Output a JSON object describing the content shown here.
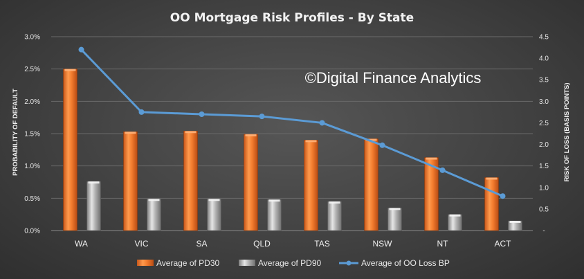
{
  "chart_data": {
    "type": "bar",
    "title": "OO Mortgage Risk Profiles - By State",
    "watermark": "©Digital Finance Analytics",
    "categories": [
      "WA",
      "VIC",
      "SA",
      "QLD",
      "TAS",
      "NSW",
      "NT",
      "ACT"
    ],
    "y_left": {
      "label": "PROBABILITY OF DEFAULT",
      "ticks": [
        "0.0%",
        "0.5%",
        "1.0%",
        "1.5%",
        "2.0%",
        "2.5%",
        "3.0%"
      ],
      "range": [
        0,
        3.0
      ]
    },
    "y_right": {
      "label": "RISK OF LOSS (BASIS POINTS)",
      "ticks": [
        "-",
        "0.5",
        "1.0",
        "1.5",
        "2.0",
        "2.5",
        "3.0",
        "3.5",
        "4.0",
        "4.5"
      ],
      "range": [
        0,
        4.5
      ]
    },
    "series": [
      {
        "name": "Average of PD30",
        "type": "bar",
        "axis": "left",
        "color": "#f07a2a",
        "values": [
          2.5,
          1.53,
          1.54,
          1.49,
          1.4,
          1.42,
          1.13,
          0.82
        ]
      },
      {
        "name": "Average of PD90",
        "type": "bar",
        "axis": "left",
        "color": "#a6a6a6",
        "values": [
          0.76,
          0.49,
          0.49,
          0.48,
          0.45,
          0.35,
          0.25,
          0.15
        ]
      },
      {
        "name": "Average of OO Loss BP",
        "type": "line",
        "axis": "right",
        "color": "#5b9bd5",
        "values": [
          4.2,
          2.75,
          2.7,
          2.65,
          2.5,
          1.98,
          1.4,
          0.8
        ]
      }
    ],
    "grid": true,
    "legend_position": "bottom"
  }
}
